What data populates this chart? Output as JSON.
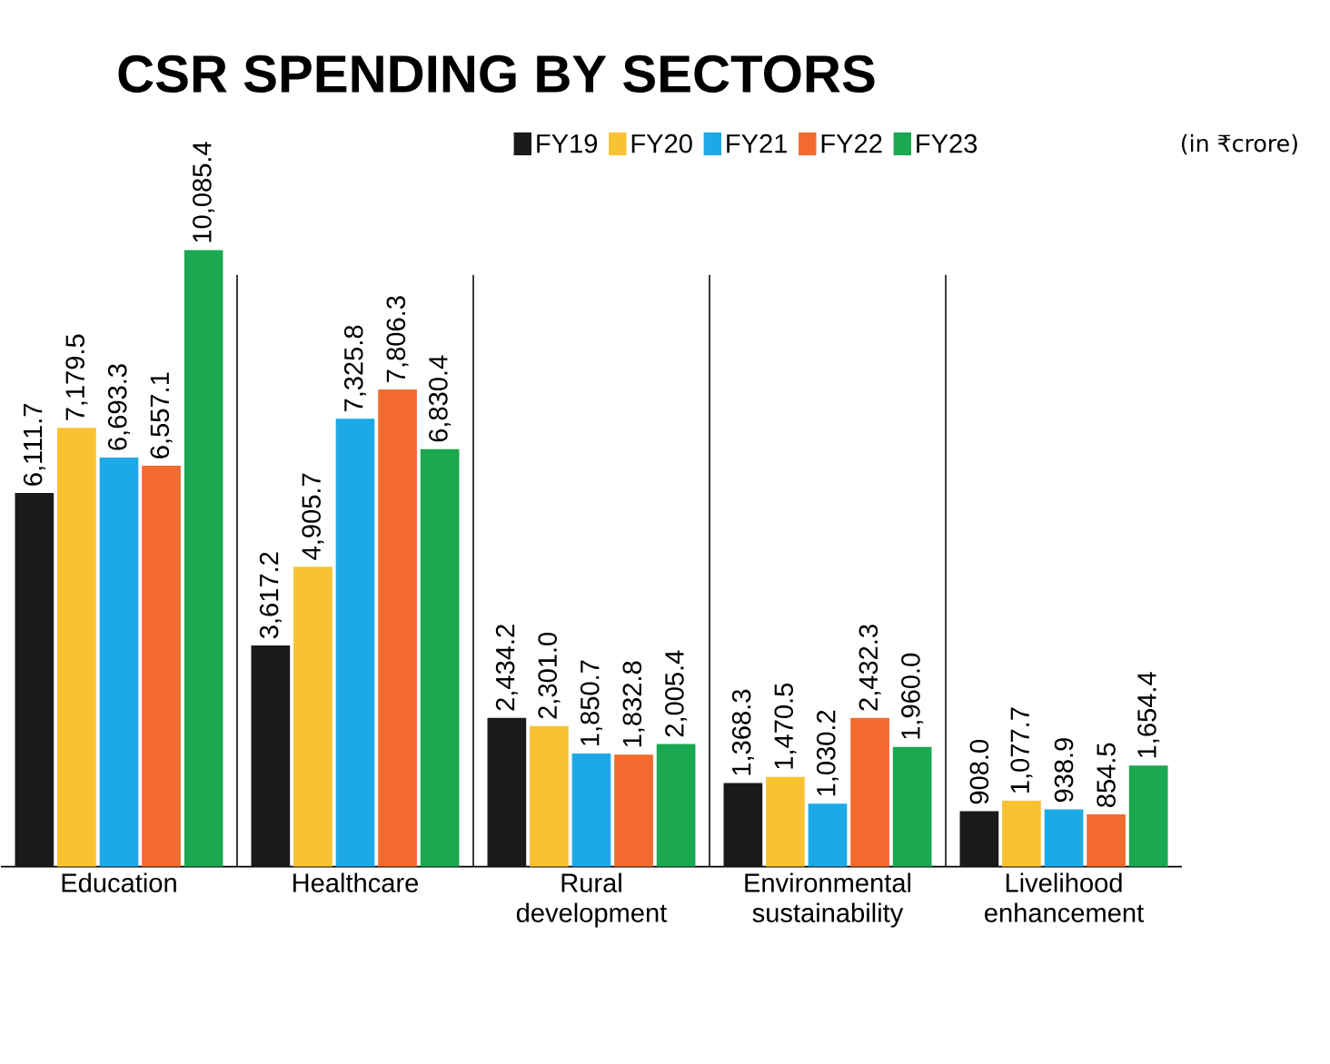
{
  "chart_data": {
    "type": "bar",
    "title": "CSR SPENDING BY SECTORS",
    "categories": [
      "Education",
      "Healthcare",
      "Rural development",
      "Environmental sustainability",
      "Livelihood enhancement"
    ],
    "series": [
      {
        "name": "FY19",
        "color": "#1a1a1a",
        "values": [
          6111.7,
          3617.2,
          2434.2,
          1368.3,
          908.0
        ],
        "value_labels": [
          "6,111.7",
          "3,617.2",
          "2,434.2",
          "1,368.3",
          "908.0"
        ]
      },
      {
        "name": "FY20",
        "color": "#f9c232",
        "values": [
          7179.5,
          4905.7,
          2301.0,
          1470.5,
          1077.7
        ],
        "value_labels": [
          "7,179.5",
          "4,905.7",
          "2,301.0",
          "1,470.5",
          "1,077.7"
        ]
      },
      {
        "name": "FY21",
        "color": "#1da9e6",
        "values": [
          6693.3,
          7325.8,
          1850.7,
          1030.2,
          938.9
        ],
        "value_labels": [
          "6,693.3",
          "7,325.8",
          "1,850.7",
          "1,030.2",
          "938.9"
        ]
      },
      {
        "name": "FY22",
        "color": "#f26a2e",
        "values": [
          6557.1,
          7806.3,
          1832.8,
          2432.3,
          854.5
        ],
        "value_labels": [
          "6,557.1",
          "7,806.3",
          "1,832.8",
          "2,432.3",
          "854.5"
        ]
      },
      {
        "name": "FY23",
        "color": "#1aa850",
        "values": [
          10085.4,
          6830.4,
          2005.4,
          1960.0,
          1654.4
        ],
        "value_labels": [
          "10,085.4",
          "6,830.4",
          "2,005.4",
          "1,960.0",
          "1,654.4"
        ]
      }
    ],
    "legend": "top right",
    "annotations": [
      "(in ₹crore)"
    ]
  }
}
